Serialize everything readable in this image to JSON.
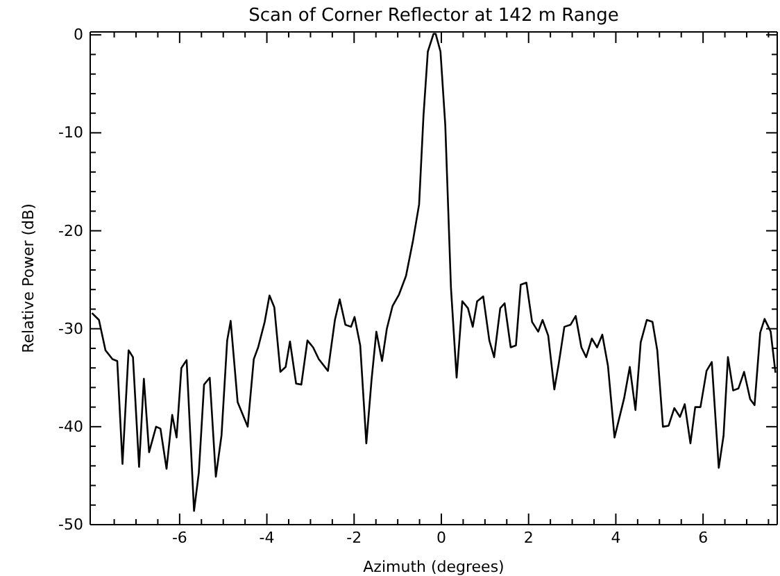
{
  "chart_data": {
    "type": "line",
    "title": "Scan of Corner Reflector at 142 m Range",
    "xlabel": "Azimuth (degrees)",
    "ylabel": "Relative Power (dB)",
    "xlim": [
      -8.05,
      7.7
    ],
    "ylim": [
      -50,
      0.3
    ],
    "grid": false,
    "marker": "none",
    "line_style": "solid",
    "xticks": [
      {
        "value": -7.5,
        "label": null
      },
      {
        "value": -7,
        "label": null
      },
      {
        "value": -6.5,
        "label": null
      },
      -6,
      {
        "value": -5.5,
        "label": null
      },
      {
        "value": -5,
        "label": null
      },
      {
        "value": -4.5,
        "label": null
      },
      -4,
      {
        "value": -3.5,
        "label": null
      },
      {
        "value": -3,
        "label": null
      },
      {
        "value": -2.5,
        "label": null
      },
      -2,
      {
        "value": -1.5,
        "label": null
      },
      {
        "value": -1,
        "label": null
      },
      {
        "value": -0.5,
        "label": null
      },
      0,
      {
        "value": 0.5,
        "label": null
      },
      {
        "value": 1,
        "label": null
      },
      {
        "value": 1.5,
        "label": null
      },
      2,
      {
        "value": 2.5,
        "label": null
      },
      {
        "value": 3,
        "label": null
      },
      {
        "value": 3.5,
        "label": null
      },
      4,
      {
        "value": 4.5,
        "label": null
      },
      {
        "value": 5,
        "label": null
      },
      {
        "value": 5.5,
        "label": null
      },
      6,
      {
        "value": 6.5,
        "label": null
      },
      {
        "value": 7,
        "label": null
      },
      {
        "value": 7.5,
        "label": null
      }
    ],
    "yticks": [
      -50,
      {
        "value": -48,
        "label": null
      },
      {
        "value": -46,
        "label": null
      },
      {
        "value": -44,
        "label": null
      },
      {
        "value": -42,
        "label": null
      },
      -40,
      {
        "value": -38,
        "label": null
      },
      {
        "value": -36,
        "label": null
      },
      {
        "value": -34,
        "label": null
      },
      {
        "value": -32,
        "label": null
      },
      -30,
      {
        "value": -28,
        "label": null
      },
      {
        "value": -26,
        "label": null
      },
      {
        "value": -24,
        "label": null
      },
      {
        "value": -22,
        "label": null
      },
      -20,
      {
        "value": -18,
        "label": null
      },
      {
        "value": -16,
        "label": null
      },
      {
        "value": -14,
        "label": null
      },
      {
        "value": -12,
        "label": null
      },
      -10,
      {
        "value": -8,
        "label": null
      },
      {
        "value": -6,
        "label": null
      },
      {
        "value": -4,
        "label": null
      },
      {
        "value": -2,
        "label": null
      },
      0
    ],
    "series": [
      {
        "color": "#000000",
        "x": [
          -8.01,
          -7.85,
          -7.7,
          -7.54,
          -7.43,
          -7.31,
          -7.17,
          -7.07,
          -6.93,
          -6.82,
          -6.7,
          -6.54,
          -6.44,
          -6.3,
          -6.17,
          -6.07,
          -5.96,
          -5.84,
          -5.67,
          -5.56,
          -5.44,
          -5.31,
          -5.17,
          -5.04,
          -4.91,
          -4.83,
          -4.67,
          -4.44,
          -4.3,
          -4.2,
          -4.05,
          -3.94,
          -3.83,
          -3.69,
          -3.57,
          -3.47,
          -3.33,
          -3.21,
          -3.07,
          -2.94,
          -2.81,
          -2.6,
          -2.44,
          -2.33,
          -2.2,
          -2.07,
          -1.99,
          -1.86,
          -1.72,
          -1.6,
          -1.49,
          -1.36,
          -1.25,
          -1.12,
          -0.97,
          -0.81,
          -0.65,
          -0.51,
          -0.41,
          -0.31,
          -0.18,
          -0.13,
          -0.02,
          0.09,
          0.22,
          0.35,
          0.48,
          0.61,
          0.72,
          0.82,
          0.96,
          1.1,
          1.21,
          1.35,
          1.45,
          1.59,
          1.71,
          1.82,
          1.95,
          2.08,
          2.22,
          2.32,
          2.45,
          2.59,
          2.69,
          2.82,
          2.96,
          3.08,
          3.21,
          3.32,
          3.45,
          3.57,
          3.69,
          3.82,
          3.97,
          4.19,
          4.32,
          4.45,
          4.57,
          4.71,
          4.84,
          4.95,
          5.08,
          5.21,
          5.34,
          5.47,
          5.58,
          5.71,
          5.82,
          5.94,
          6.08,
          6.2,
          6.36,
          6.47,
          6.57,
          6.69,
          6.81,
          6.94,
          7.08,
          7.18,
          7.31,
          7.41,
          7.55,
          7.66
        ],
        "values": [
          -28.4,
          -29.1,
          -32.2,
          -33.1,
          -33.3,
          -43.8,
          -32.2,
          -32.9,
          -44.1,
          -35.1,
          -42.6,
          -40,
          -40.2,
          -44.3,
          -38.8,
          -41.1,
          -34,
          -33.2,
          -48.6,
          -44.7,
          -35.7,
          -35,
          -45.1,
          -40.9,
          -31.2,
          -29.2,
          -37.5,
          -40,
          -33.1,
          -31.9,
          -29.3,
          -26.6,
          -27.8,
          -34.4,
          -33.9,
          -31.3,
          -35.6,
          -35.7,
          -31.2,
          -31.9,
          -33.1,
          -34.3,
          -29.1,
          -27,
          -29.6,
          -29.8,
          -28.8,
          -31.7,
          -41.7,
          -35.2,
          -30.3,
          -33.3,
          -30,
          -27.7,
          -26.5,
          -24.6,
          -21,
          -17.3,
          -8.3,
          -1.7,
          0.1,
          0.1,
          -1.7,
          -9.2,
          -25.8,
          -35,
          -27.2,
          -27.9,
          -29.8,
          -27.2,
          -26.7,
          -31.2,
          -32.9,
          -27.9,
          -27.4,
          -31.9,
          -31.7,
          -25.5,
          -25.3,
          -29.3,
          -30.3,
          -29.1,
          -30.7,
          -36.2,
          -33.6,
          -29.8,
          -29.6,
          -28.7,
          -31.9,
          -32.9,
          -31,
          -31.9,
          -30.6,
          -33.8,
          -41.1,
          -37.1,
          -33.9,
          -38.3,
          -31.4,
          -29.1,
          -29.3,
          -32.2,
          -40,
          -39.9,
          -38.1,
          -39,
          -37.7,
          -41.7,
          -38,
          -38,
          -34.3,
          -33.4,
          -44.2,
          -40.9,
          -32.9,
          -36.3,
          -36.1,
          -34.4,
          -37.2,
          -37.8,
          -30.4,
          -29,
          -30.3,
          -34.5
        ]
      }
    ]
  }
}
